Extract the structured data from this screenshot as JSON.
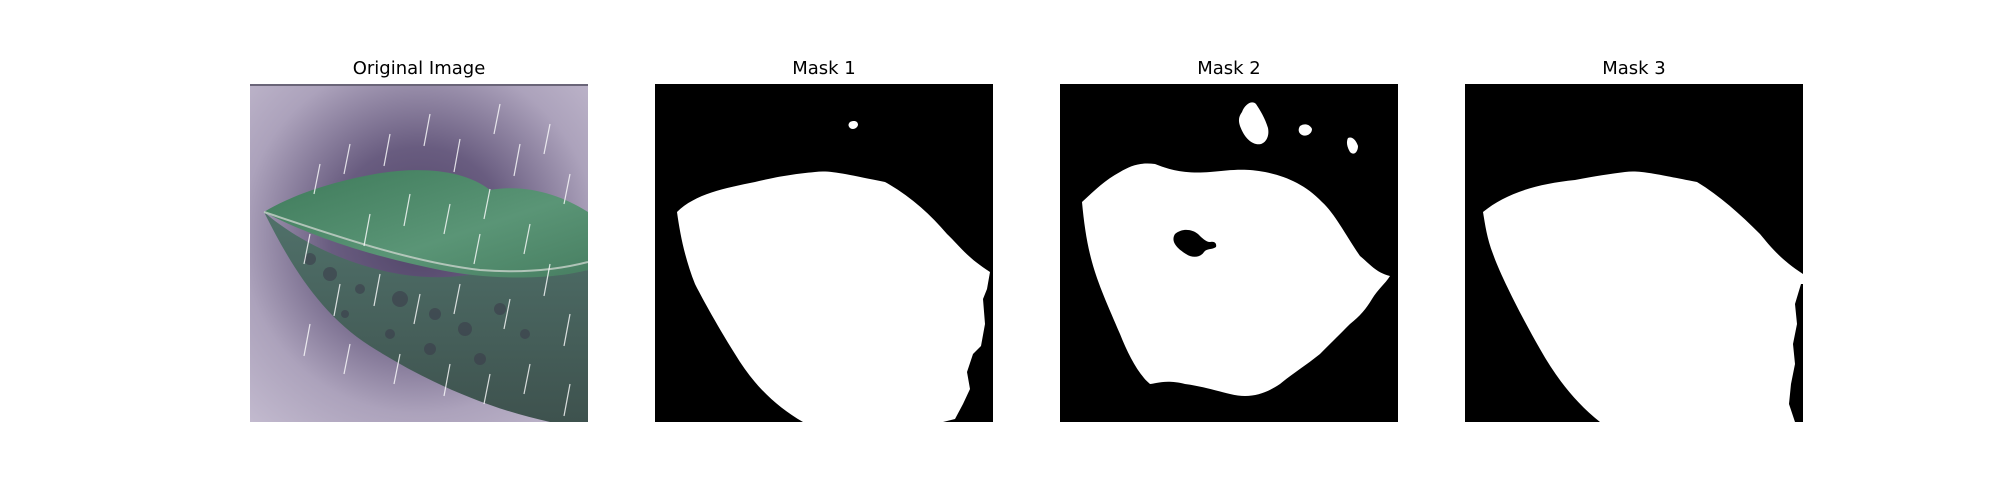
{
  "figure": {
    "panels": [
      {
        "title": "Original Image"
      },
      {
        "title": "Mask 1"
      },
      {
        "title": "Mask 2"
      },
      {
        "title": "Mask 3"
      }
    ]
  },
  "colors": {
    "background": "#ffffff",
    "mask_background": "#000000",
    "mask_foreground": "#ffffff",
    "photo_backdrop": "#b7aec6",
    "leaf_green": "#4f8a6a",
    "leaf_shadow": "#3f5650"
  }
}
